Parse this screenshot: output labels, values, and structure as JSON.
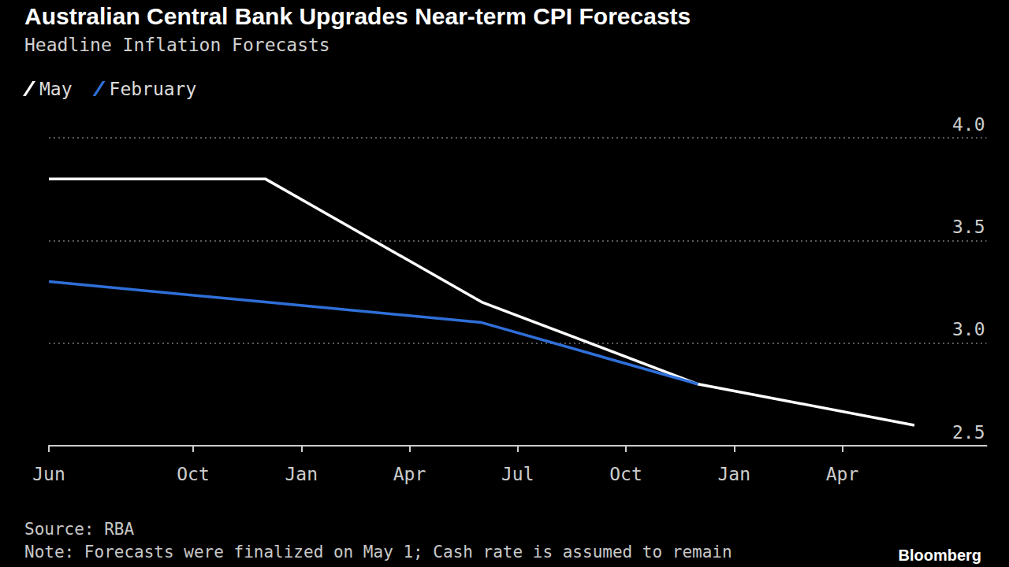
{
  "chart_data": {
    "type": "line",
    "title": "Australian Central Bank Upgrades Near-term CPI Forecasts",
    "subtitle": "Headline Inflation Forecasts",
    "source": "Source: RBA",
    "note": "Note: Forecasts were finalized on May 1; Cash rate is assumed to remain",
    "branding": "Bloomberg",
    "categories": [
      "Jun",
      null,
      null,
      null,
      "Oct",
      null,
      null,
      "Jan",
      null,
      null,
      "Apr",
      null,
      null,
      "Jul",
      null,
      null,
      "Oct",
      null,
      null,
      "Jan",
      null,
      null,
      "Apr",
      null,
      null,
      null,
      null
    ],
    "series": [
      {
        "name": "May",
        "color": "#ffffff",
        "values": [
          3.8,
          null,
          null,
          null,
          null,
          null,
          3.8,
          null,
          null,
          null,
          null,
          null,
          3.2,
          null,
          null,
          null,
          null,
          null,
          2.8,
          null,
          null,
          null,
          null,
          null,
          2.6,
          null,
          null
        ]
      },
      {
        "name": "February",
        "color": "#2f6fd8",
        "values": [
          3.3,
          null,
          null,
          null,
          null,
          null,
          3.2,
          null,
          null,
          null,
          null,
          null,
          3.1,
          null,
          null,
          null,
          null,
          null,
          2.8,
          null,
          null,
          null,
          null,
          null,
          null,
          null,
          null
        ]
      }
    ],
    "ylim": [
      2.5,
      4.0
    ],
    "yticks": [
      2.5,
      {
        "value": 3,
        "label": "3.0"
      },
      3.5,
      {
        "value": 4,
        "label": "4.0"
      }
    ],
    "grid": true,
    "legend": "top-left"
  }
}
